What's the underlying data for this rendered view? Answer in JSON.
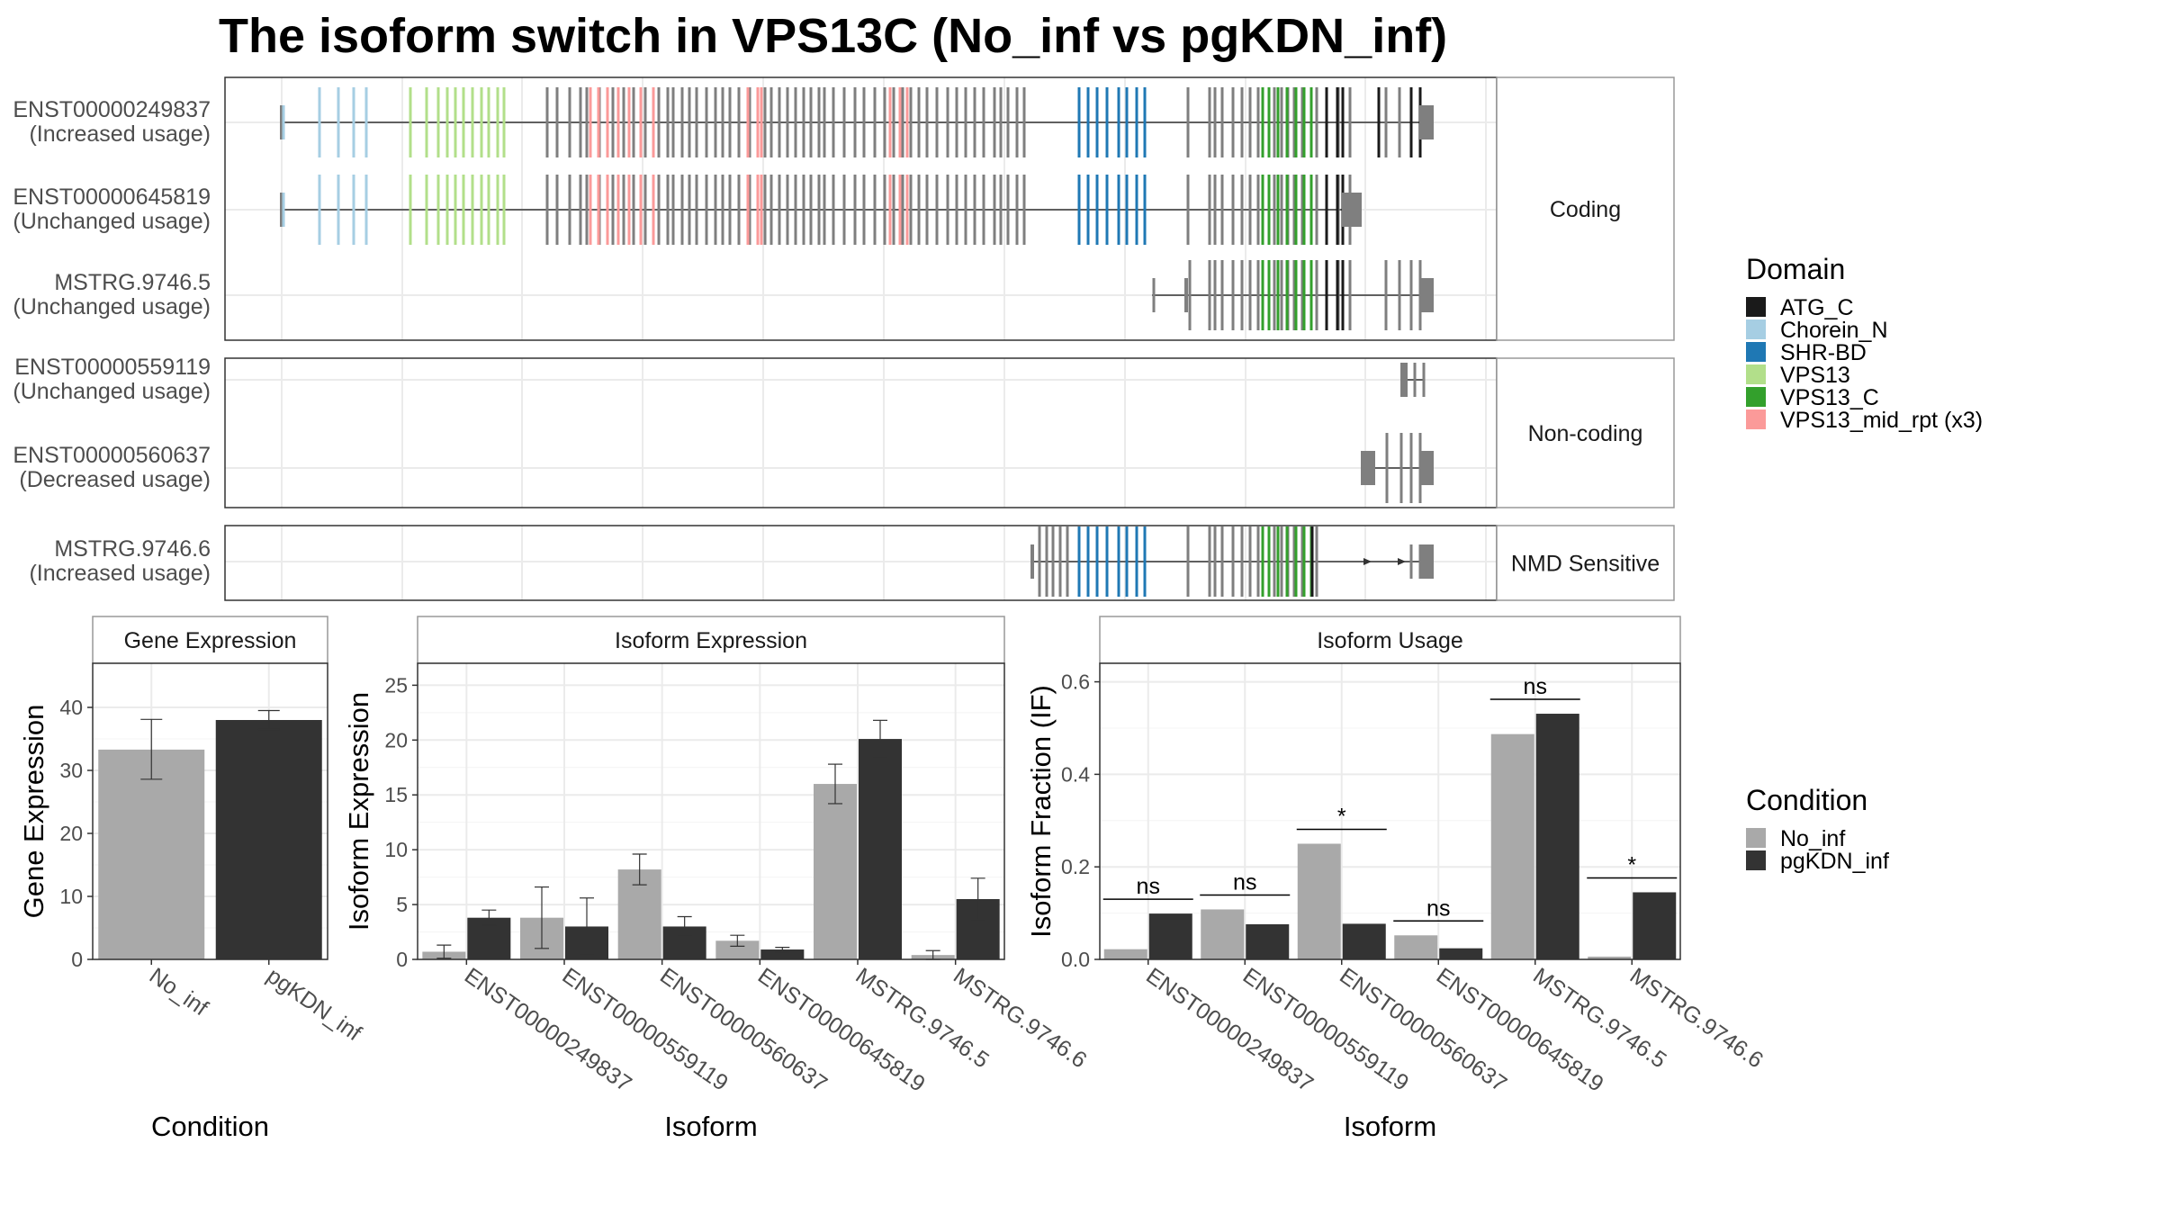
{
  "title": "The isoform switch in VPS13C (No_inf vs pgKDN_inf)",
  "colors": {
    "No_inf": "#a9a9a9",
    "pgKDN_inf": "#333333",
    "exon": "#7f7f7f",
    "domains": {
      "ATG_C": "#1a1a1a",
      "Chorein_N": "#a6cee3",
      "SHR-BD": "#1f78b4",
      "VPS13": "#b2df8a",
      "VPS13_C": "#33a02c",
      "VPS13_mid_rpt (x3)": "#fb9a99"
    }
  },
  "legends": {
    "domain_title": "Domain",
    "domain_items": [
      "ATG_C",
      "Chorein_N",
      "SHR-BD",
      "VPS13",
      "VPS13_C",
      "VPS13_mid_rpt (x3)"
    ],
    "condition_title": "Condition",
    "condition_items": [
      "No_inf",
      "pgKDN_inf"
    ]
  },
  "structure": {
    "facets": [
      {
        "label": "Coding",
        "transcripts": [
          {
            "id": "ENST00000249837",
            "usage": "(Increased usage)"
          },
          {
            "id": "ENST00000645819",
            "usage": "(Unchanged usage)"
          },
          {
            "id": "MSTRG.9746.5",
            "usage": "(Unchanged usage)"
          }
        ]
      },
      {
        "label": "Non-coding",
        "transcripts": [
          {
            "id": "ENST00000559119",
            "usage": "(Unchanged usage)"
          },
          {
            "id": "ENST00000560637",
            "usage": "(Decreased usage)"
          }
        ]
      },
      {
        "label": "NMD Sensitive",
        "transcripts": [
          {
            "id": "MSTRG.9746.6",
            "usage": "(Increased usage)"
          }
        ]
      }
    ]
  },
  "chart_data": [
    {
      "type": "bar",
      "title": "Gene Expression",
      "xlabel": "Condition",
      "ylabel": "Gene Expression",
      "categories": [
        "No_inf",
        "pgKDN_inf"
      ],
      "values": [
        33.3,
        38.0
      ],
      "error_low": [
        28.6,
        36.5
      ],
      "error_high": [
        38.1,
        39.5
      ],
      "ylim": [
        0,
        47
      ],
      "yticks": [
        0,
        10,
        20,
        30,
        40
      ]
    },
    {
      "type": "bar",
      "title": "Isoform Expression",
      "xlabel": "Isoform",
      "ylabel": "Isoform Expression",
      "categories": [
        "ENST00000249837",
        "ENST00000559119",
        "ENST00000560637",
        "ENST00000645819",
        "MSTRG.9746.5",
        "MSTRG.9746.6"
      ],
      "series": [
        {
          "name": "No_inf",
          "values": [
            0.7,
            3.8,
            8.2,
            1.7,
            16.0,
            0.4
          ],
          "error_low": [
            0.1,
            1.0,
            6.8,
            1.2,
            14.2,
            0.0
          ],
          "error_high": [
            1.3,
            6.6,
            9.6,
            2.2,
            17.8,
            0.8
          ]
        },
        {
          "name": "pgKDN_inf",
          "values": [
            3.8,
            3.0,
            3.0,
            0.9,
            20.1,
            5.5
          ],
          "error_low": [
            3.1,
            0.4,
            2.1,
            0.7,
            18.4,
            3.6
          ],
          "error_high": [
            4.5,
            5.6,
            3.9,
            1.1,
            21.8,
            7.4
          ]
        }
      ],
      "ylim": [
        0,
        27
      ],
      "yticks": [
        0,
        5,
        10,
        15,
        20,
        25
      ]
    },
    {
      "type": "bar",
      "title": "Isoform Usage",
      "xlabel": "Isoform",
      "ylabel": "Isoform Fraction (IF)",
      "categories": [
        "ENST00000249837",
        "ENST00000559119",
        "ENST00000560637",
        "ENST00000645819",
        "MSTRG.9746.5",
        "MSTRG.9746.6"
      ],
      "series": [
        {
          "name": "No_inf",
          "values": [
            0.022,
            0.108,
            0.25,
            0.052,
            0.487,
            0.006
          ]
        },
        {
          "name": "pgKDN_inf",
          "values": [
            0.099,
            0.076,
            0.077,
            0.024,
            0.531,
            0.145
          ]
        }
      ],
      "significance": [
        "ns",
        "ns",
        "*",
        "ns",
        "ns",
        "*"
      ],
      "ylim": [
        0,
        0.64
      ],
      "yticks": [
        0.0,
        0.2,
        0.4,
        0.6
      ]
    }
  ]
}
